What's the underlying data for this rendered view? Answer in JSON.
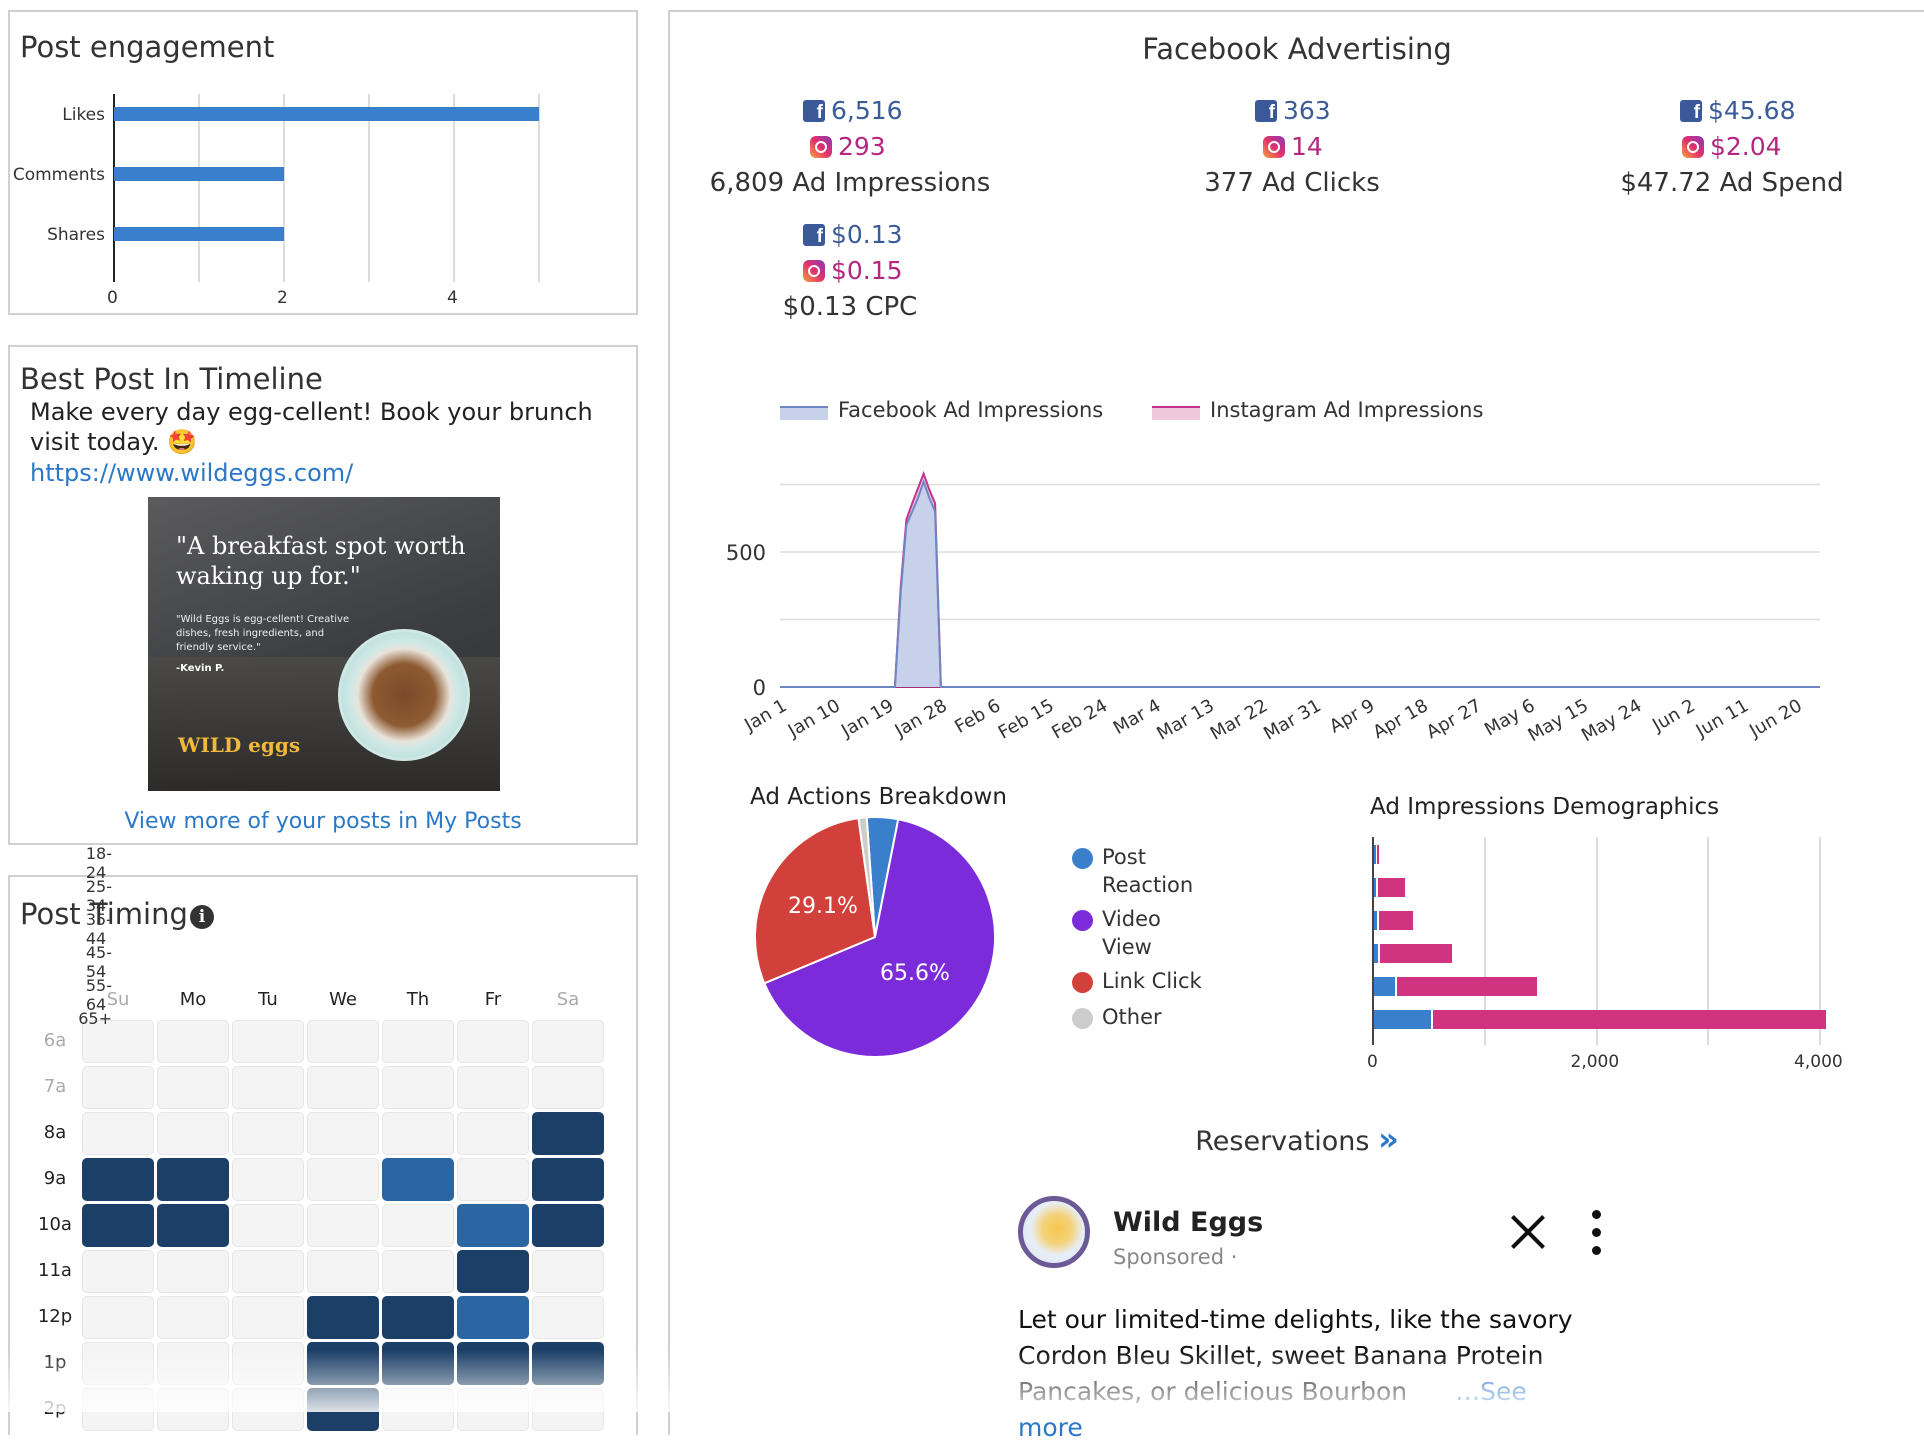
{
  "post_engagement": {
    "title": "Post engagement",
    "chart_data": {
      "type": "bar",
      "orientation": "horizontal",
      "categories": [
        "Likes",
        "Comments",
        "Shares"
      ],
      "values": [
        5,
        2,
        2
      ],
      "ticks": [
        "0",
        "2",
        "4"
      ],
      "xlim": [
        0,
        5
      ],
      "color": "#3a7fcb"
    }
  },
  "best_post": {
    "title": "Best Post In Timeline",
    "text": "Make every day egg-cellent! Book your brunch visit today. 🤩",
    "link": "https://www.wildeggs.com/",
    "image": {
      "headline": "\"A breakfast spot worth waking up for.\"",
      "quote": "\"Wild Eggs is egg-cellent! Creative dishes, fresh ingredients, and friendly service.\"",
      "author": "-Kevin P.",
      "logo": "WILD eggs"
    },
    "more_link": "View more of your posts in My Posts"
  },
  "post_timing": {
    "title": "Post Timing",
    "info_icon": "info-icon",
    "days": [
      "Su",
      "Mo",
      "Tu",
      "We",
      "Th",
      "Fr",
      "Sa"
    ],
    "hours": [
      "6a",
      "7a",
      "8a",
      "9a",
      "10a",
      "11a",
      "12p",
      "1p",
      "2p"
    ],
    "grid": [
      [
        0,
        0,
        0,
        0,
        0,
        0,
        0
      ],
      [
        0,
        0,
        0,
        0,
        0,
        0,
        0
      ],
      [
        0,
        0,
        0,
        0,
        0,
        0,
        3
      ],
      [
        3,
        3,
        0,
        0,
        2,
        0,
        3
      ],
      [
        3,
        3,
        0,
        0,
        0,
        2,
        3
      ],
      [
        0,
        0,
        0,
        0,
        0,
        3,
        0
      ],
      [
        0,
        0,
        0,
        3,
        3,
        2,
        0
      ],
      [
        0,
        0,
        0,
        3,
        3,
        3,
        3
      ],
      [
        0,
        0,
        0,
        3,
        0,
        0,
        0
      ]
    ]
  },
  "fb_ads": {
    "title": "Facebook Advertising",
    "metrics": [
      {
        "fb": "6,516",
        "ig": "293",
        "total": "6,809 Ad Impressions"
      },
      {
        "fb": "363",
        "ig": "14",
        "total": "377 Ad Clicks"
      },
      {
        "fb": "$45.68",
        "ig": "$2.04",
        "total": "$47.72 Ad Spend"
      },
      {
        "fb": "$0.13",
        "ig": "$0.15",
        "total": "$0.13 CPC"
      }
    ],
    "colors": {
      "facebook": "#3b5c9a",
      "instagram": "#b5277f"
    }
  },
  "impressions_chart": {
    "chart_data": {
      "type": "area",
      "series": [
        {
          "name": "Facebook Ad Impressions",
          "color": "#6f86c4",
          "fill": "#c8d1ea"
        },
        {
          "name": "Instagram Ad Impressions",
          "color": "#c2338b",
          "fill": "#f0c8de"
        }
      ],
      "x_ticks": [
        "Jan 1",
        "Jan 10",
        "Jan 19",
        "Jan 28",
        "Feb 6",
        "Feb 15",
        "Feb 24",
        "Mar 4",
        "Mar 13",
        "Mar 22",
        "Mar 31",
        "Apr 9",
        "Apr 18",
        "Apr 27",
        "May 6",
        "May 15",
        "May 24",
        "Jun 2",
        "Jun 11",
        "Jun 20"
      ],
      "y_ticks": [
        "0",
        "500"
      ],
      "ylim": [
        0,
        760
      ],
      "points_day_index": [
        0,
        20,
        21,
        22,
        23,
        24,
        25,
        26,
        27,
        28,
        29,
        30,
        31,
        32,
        33,
        34,
        35,
        181
      ],
      "facebook_values": [
        0,
        0,
        350,
        600,
        650,
        700,
        760,
        700,
        650,
        0,
        0,
        0,
        0,
        0,
        0,
        0,
        0,
        0
      ],
      "instagram_values": [
        0,
        0,
        370,
        620,
        680,
        735,
        790,
        730,
        680,
        0,
        0,
        0,
        0,
        0,
        0,
        0,
        0,
        0
      ],
      "grid": true,
      "legend": "top"
    }
  },
  "ad_actions": {
    "title": "Ad Actions Breakdown",
    "chart_data": {
      "type": "pie",
      "slices": [
        {
          "label": "Post Reaction",
          "value": 4.2,
          "color": "#3a7fcb"
        },
        {
          "label": "Video View",
          "value": 65.6,
          "color": "#7b2bd9"
        },
        {
          "label": "Link Click",
          "value": 29.1,
          "color": "#d1403a"
        },
        {
          "label": "Other",
          "value": 1.1,
          "color": "#cccccc"
        }
      ],
      "data_labels": [
        "29.1%",
        "65.6%"
      ]
    },
    "legend": [
      {
        "label": "Post Reaction",
        "color": "#3a7fcb"
      },
      {
        "label": "Video View",
        "color": "#7b2bd9"
      },
      {
        "label": "Link Click",
        "color": "#d1403a"
      },
      {
        "label": "Other",
        "color": "#cccccc"
      }
    ]
  },
  "demographics": {
    "title": "Ad Impressions Demographics",
    "chart_data": {
      "type": "bar",
      "orientation": "horizontal",
      "stacked": true,
      "categories": [
        "18-24",
        "25-34",
        "35-44",
        "45-54",
        "55-64",
        "65+"
      ],
      "series": [
        {
          "values": [
            10,
            20,
            25,
            40,
            190,
            510
          ],
          "color": "#3a7fcb"
        },
        {
          "values": [
            20,
            240,
            310,
            640,
            1250,
            3520
          ],
          "color": "#d0337f"
        }
      ],
      "x_ticks": [
        "0",
        "2,000",
        "4,000"
      ],
      "xlim": [
        0,
        4000
      ],
      "grid": true
    }
  },
  "reservations": {
    "label": "Reservations",
    "chevron": "»"
  },
  "ad_preview": {
    "page_name": "Wild Eggs",
    "sponsored": "Sponsored ·",
    "text": "Let our limited-time delights, like the savory Cordon Bleu Skillet, sweet Banana Protein Pancakes, or delicious Bourbon",
    "see_more": "…See more"
  }
}
